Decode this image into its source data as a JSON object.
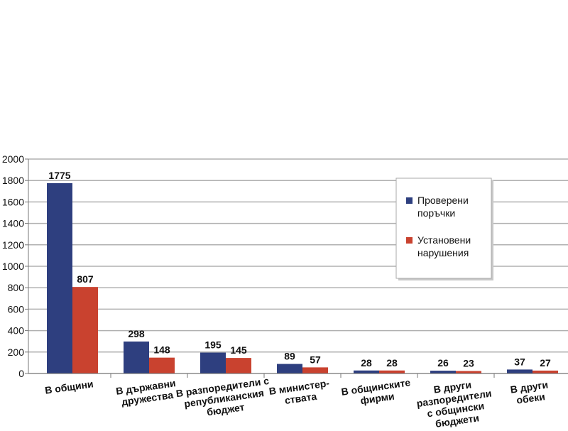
{
  "chart_data": {
    "type": "bar",
    "title": "",
    "xlabel": "",
    "ylabel": "",
    "ylim": [
      0,
      2000
    ],
    "ytick_step": 200,
    "grid": true,
    "legend_position": "right",
    "categories": [
      [
        "В общини"
      ],
      [
        "В държавни",
        "дружества"
      ],
      [
        "В разпоредители с",
        "републиканския",
        "бюджет"
      ],
      [
        "В министер-",
        "ствата"
      ],
      [
        "В общинските",
        "фирми"
      ],
      [
        "В други",
        "разпоредители",
        "с общински",
        "бюджети"
      ],
      [
        "В други",
        "обеки"
      ]
    ],
    "series": [
      {
        "name": [
          "Проверени",
          "поръчки"
        ],
        "color": "#2e3f7f",
        "values": [
          1775,
          298,
          195,
          89,
          28,
          26,
          37
        ]
      },
      {
        "name": [
          "Установени",
          "нарушения"
        ],
        "color": "#c9422f",
        "values": [
          807,
          148,
          145,
          57,
          28,
          23,
          27
        ]
      }
    ]
  }
}
